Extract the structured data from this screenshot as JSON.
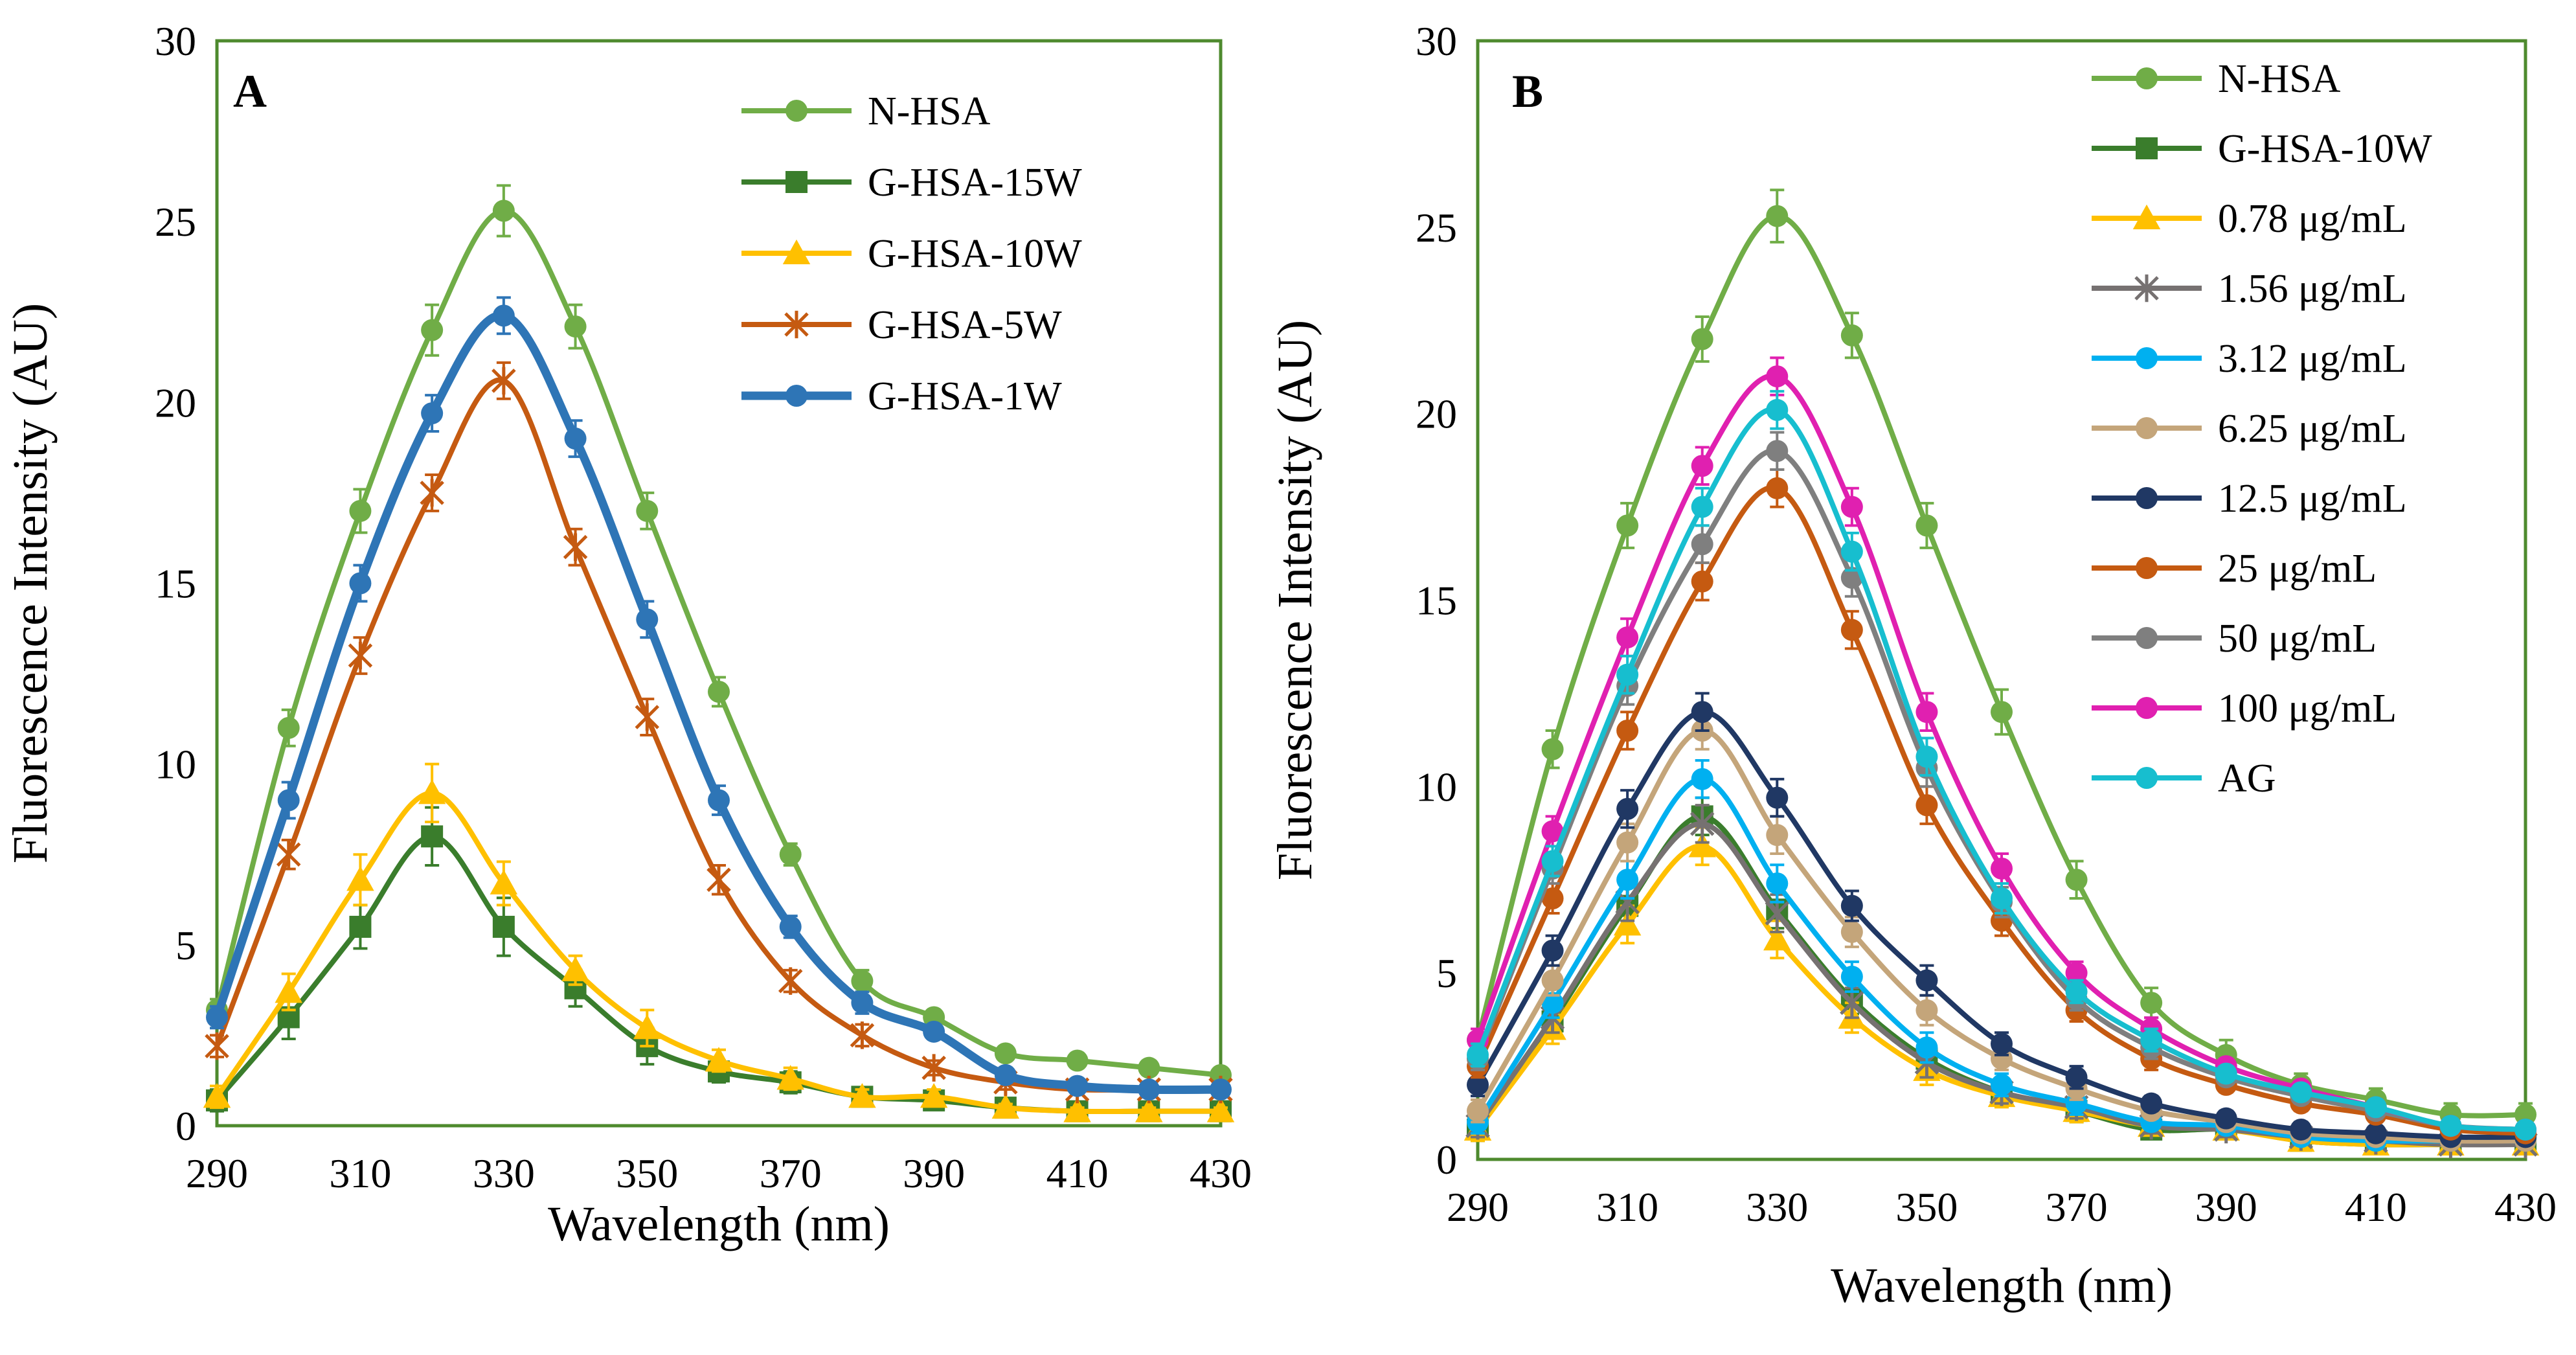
{
  "chart_data": [
    {
      "type": "line",
      "panel_label": "A",
      "xlabel": "Wavelength (nm)",
      "ylabel": "Fluorescence Intensity (AU)",
      "xlim": [
        290,
        430
      ],
      "ylim": [
        0,
        30
      ],
      "xticks": [
        290,
        310,
        330,
        350,
        370,
        390,
        410,
        430
      ],
      "yticks": [
        0,
        5,
        10,
        15,
        20,
        25,
        30
      ],
      "legend": "top-right",
      "x": [
        290,
        300,
        310,
        320,
        330,
        340,
        350,
        360,
        370,
        380,
        390,
        400,
        410,
        420,
        430
      ],
      "series": [
        {
          "name": "N-HSA",
          "color": "#70ad47",
          "marker": "circle",
          "values": [
            3.2,
            11,
            17,
            22,
            25.3,
            22.1,
            17,
            12,
            7.5,
            4,
            3,
            2,
            1.8,
            1.6,
            1.4
          ],
          "errors": [
            0.3,
            0.5,
            0.6,
            0.7,
            0.7,
            0.6,
            0.5,
            0.4,
            0.3,
            0.3,
            0.2,
            0.2,
            0.2,
            0.2,
            0.2
          ]
        },
        {
          "name": "G-HSA-15W",
          "color": "#3a7d2c",
          "marker": "square",
          "values": [
            0.7,
            3,
            5.5,
            8,
            5.5,
            3.8,
            2.2,
            1.5,
            1.2,
            0.8,
            0.7,
            0.5,
            0.4,
            0.4,
            0.4
          ],
          "errors": [
            0.3,
            0.6,
            0.6,
            0.8,
            0.8,
            0.5,
            0.5,
            0.3,
            0.3,
            0.2,
            0.2,
            0.2,
            0.1,
            0.1,
            0.1
          ]
        },
        {
          "name": "G-HSA-10W",
          "color": "#ffc000",
          "marker": "triangle",
          "values": [
            0.8,
            3.7,
            6.8,
            9.2,
            6.7,
            4.3,
            2.7,
            1.8,
            1.3,
            0.8,
            0.8,
            0.5,
            0.4,
            0.4,
            0.4
          ],
          "errors": [
            0.3,
            0.5,
            0.7,
            0.8,
            0.6,
            0.4,
            0.5,
            0.3,
            0.3,
            0.2,
            0.2,
            0.1,
            0.1,
            0.1,
            0.1
          ]
        },
        {
          "name": "G-HSA-5W",
          "color": "#c55a11",
          "marker": "star",
          "values": [
            2.2,
            7.5,
            13,
            17.5,
            20.6,
            16,
            11.3,
            6.8,
            4,
            2.5,
            1.6,
            1.2,
            1,
            1,
            1
          ],
          "errors": [
            0.3,
            0.4,
            0.5,
            0.5,
            0.5,
            0.5,
            0.5,
            0.4,
            0.3,
            0.3,
            0.2,
            0.2,
            0.1,
            0.1,
            0.1
          ]
        },
        {
          "name": "G-HSA-1W",
          "color": "#2e75b6",
          "marker": "circle",
          "values": [
            3,
            9,
            15,
            19.7,
            22.4,
            19,
            14,
            9,
            5.5,
            3.4,
            2.6,
            1.4,
            1.1,
            1,
            1
          ],
          "errors": [
            0.3,
            0.5,
            0.5,
            0.5,
            0.5,
            0.5,
            0.5,
            0.4,
            0.3,
            0.3,
            0.2,
            0.2,
            0.1,
            0.1,
            0.1
          ]
        }
      ]
    },
    {
      "type": "line",
      "panel_label": "B",
      "xlabel": "Wavelength (nm)",
      "ylabel": "Fluorescence Intensity (AU)",
      "xlim": [
        290,
        430
      ],
      "ylim": [
        0,
        30
      ],
      "xticks": [
        290,
        310,
        330,
        350,
        370,
        390,
        410,
        430
      ],
      "yticks": [
        0,
        5,
        10,
        15,
        20,
        25,
        30
      ],
      "legend": "top-right",
      "x": [
        290,
        300,
        310,
        320,
        330,
        340,
        350,
        360,
        370,
        380,
        390,
        400,
        410,
        420,
        430
      ],
      "series": [
        {
          "name": "N-HSA",
          "color": "#70ad47",
          "marker": "circle",
          "values": [
            3.2,
            11,
            17,
            22,
            25.3,
            22.1,
            17,
            12,
            7.5,
            4.2,
            2.8,
            2,
            1.6,
            1.2,
            1.2
          ],
          "errors": [
            0.3,
            0.5,
            0.6,
            0.6,
            0.7,
            0.6,
            0.6,
            0.6,
            0.5,
            0.4,
            0.4,
            0.3,
            0.3,
            0.3,
            0.3
          ]
        },
        {
          "name": "G-HSA-10W",
          "color": "#3a7d2c",
          "marker": "square",
          "values": [
            0.8,
            3.7,
            6.8,
            9.2,
            6.7,
            4.3,
            2.7,
            1.8,
            1.3,
            0.8,
            0.8,
            0.5,
            0.4,
            0.4,
            0.4
          ],
          "errors": [
            0.3,
            0.4,
            0.5,
            0.5,
            0.5,
            0.4,
            0.4,
            0.3,
            0.3,
            0.2,
            0.2,
            0.2,
            0.2,
            0.1,
            0.1
          ]
        },
        {
          "name": "0.78 μg/mL",
          "color": "#ffc000",
          "marker": "triangle",
          "values": [
            0.8,
            3.5,
            6.3,
            8.4,
            5.9,
            3.8,
            2.4,
            1.7,
            1.3,
            0.9,
            0.8,
            0.5,
            0.4,
            0.4,
            0.4
          ],
          "errors": [
            0.3,
            0.4,
            0.5,
            0.5,
            0.5,
            0.4,
            0.4,
            0.3,
            0.3,
            0.2,
            0.2,
            0.2,
            0.2,
            0.1,
            0.1
          ]
        },
        {
          "name": "1.56 μg/mL",
          "color": "#767171",
          "marker": "star",
          "values": [
            0.9,
            3.8,
            6.9,
            9,
            6.6,
            4.2,
            2.6,
            1.8,
            1.4,
            0.9,
            0.8,
            0.6,
            0.5,
            0.4,
            0.4
          ],
          "errors": [
            0.3,
            0.4,
            0.5,
            0.5,
            0.5,
            0.4,
            0.4,
            0.3,
            0.3,
            0.2,
            0.2,
            0.2,
            0.2,
            0.1,
            0.1
          ]
        },
        {
          "name": "3.12 μg/mL",
          "color": "#00b0f0",
          "marker": "circle",
          "values": [
            1,
            4.2,
            7.5,
            10.2,
            7.4,
            4.9,
            3,
            2,
            1.5,
            1,
            0.9,
            0.6,
            0.5,
            0.5,
            0.5
          ],
          "errors": [
            0.3,
            0.4,
            0.5,
            0.5,
            0.5,
            0.4,
            0.4,
            0.3,
            0.3,
            0.2,
            0.2,
            0.2,
            0.2,
            0.1,
            0.1
          ]
        },
        {
          "name": "6.25 μg/mL",
          "color": "#c4a57a",
          "marker": "circle",
          "values": [
            1.3,
            4.8,
            8.5,
            11.5,
            8.7,
            6.1,
            4,
            2.7,
            1.9,
            1.3,
            1,
            0.7,
            0.6,
            0.5,
            0.5
          ],
          "errors": [
            0.3,
            0.4,
            0.5,
            0.5,
            0.5,
            0.4,
            0.4,
            0.3,
            0.3,
            0.2,
            0.2,
            0.2,
            0.2,
            0.1,
            0.1
          ]
        },
        {
          "name": "12.5 μg/mL",
          "color": "#203864",
          "marker": "circle",
          "values": [
            2,
            5.6,
            9.4,
            12,
            9.7,
            6.8,
            4.8,
            3.1,
            2.2,
            1.5,
            1.1,
            0.8,
            0.7,
            0.6,
            0.6
          ],
          "errors": [
            0.3,
            0.4,
            0.5,
            0.5,
            0.5,
            0.4,
            0.4,
            0.3,
            0.3,
            0.2,
            0.2,
            0.2,
            0.2,
            0.1,
            0.1
          ]
        },
        {
          "name": "25 μg/mL",
          "color": "#c55a11",
          "marker": "circle",
          "values": [
            2.5,
            7,
            11.5,
            15.5,
            18,
            14.2,
            9.5,
            6.4,
            4,
            2.7,
            2,
            1.5,
            1.2,
            0.8,
            0.7
          ],
          "errors": [
            0.3,
            0.4,
            0.5,
            0.5,
            0.5,
            0.5,
            0.5,
            0.4,
            0.3,
            0.3,
            0.2,
            0.2,
            0.2,
            0.2,
            0.1
          ]
        },
        {
          "name": "50 μg/mL",
          "color": "#7f7f7f",
          "marker": "circle",
          "values": [
            2.7,
            7.8,
            12.7,
            16.5,
            19,
            15.6,
            10.5,
            6.9,
            4.3,
            3,
            2.2,
            1.7,
            1.3,
            0.9,
            0.8
          ],
          "errors": [
            0.3,
            0.4,
            0.5,
            0.5,
            0.5,
            0.5,
            0.5,
            0.4,
            0.3,
            0.3,
            0.2,
            0.2,
            0.2,
            0.2,
            0.1
          ]
        },
        {
          "name": "100 μg/mL",
          "color": "#e020b0",
          "marker": "circle",
          "values": [
            3.2,
            8.8,
            14,
            18.6,
            21,
            17.5,
            12,
            7.8,
            5,
            3.5,
            2.5,
            1.9,
            1.4,
            0.9,
            0.8
          ],
          "errors": [
            0.3,
            0.4,
            0.5,
            0.5,
            0.5,
            0.5,
            0.5,
            0.4,
            0.3,
            0.3,
            0.2,
            0.2,
            0.2,
            0.2,
            0.1
          ]
        },
        {
          "name": "AG",
          "color": "#17becf",
          "marker": "circle",
          "values": [
            2.8,
            8,
            13,
            17.5,
            20.1,
            16.3,
            10.8,
            7,
            4.5,
            3.2,
            2.3,
            1.8,
            1.4,
            0.9,
            0.8
          ],
          "errors": [
            0.3,
            0.4,
            0.5,
            0.5,
            0.5,
            0.5,
            0.5,
            0.4,
            0.3,
            0.3,
            0.2,
            0.2,
            0.2,
            0.2,
            0.1
          ]
        }
      ]
    }
  ]
}
